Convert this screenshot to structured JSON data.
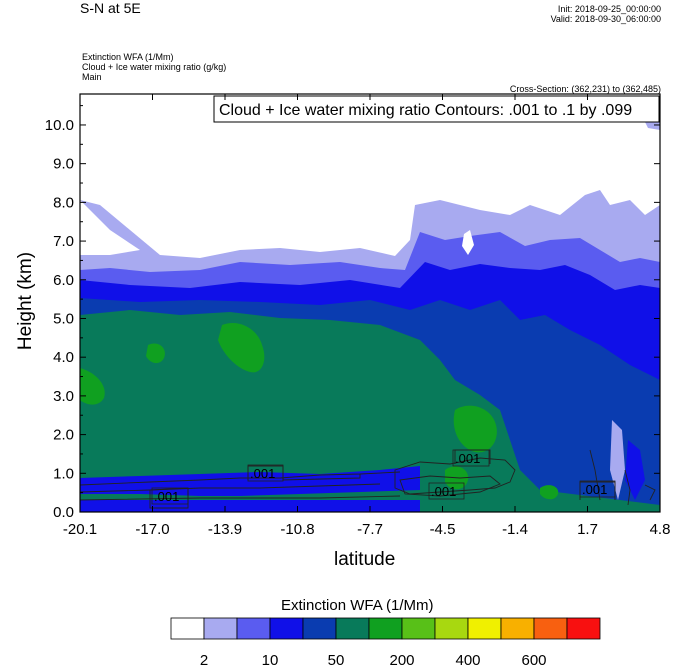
{
  "header": {
    "title": "S-N at 5E",
    "init": "Init: 2018-09-25_00:00:00",
    "valid": "Valid: 2018-09-30_06:00:00",
    "field1": "Extinction WFA   (1/Mm)",
    "field2": "Cloud + Ice water mixing ratio   (g/kg)",
    "field3": "Main",
    "cross_section": "Cross-Section: (362,231) to (362,485)"
  },
  "chart_data": {
    "type": "heatmap",
    "title": "Cloud + Ice water mixing ratio Contours: .001 to .1 by .099",
    "xlabel": "latitude",
    "ylabel": "Height (km)",
    "xlim": [
      -20.1,
      4.8
    ],
    "ylim": [
      0.0,
      10.8
    ],
    "x_ticks": [
      "-20.1",
      "-17.0",
      "-13.9",
      "-10.8",
      "-7.7",
      "-4.5",
      "-1.4",
      "1.7",
      "4.8"
    ],
    "y_ticks": [
      "0.0",
      "1.0",
      "2.0",
      "3.0",
      "4.0",
      "5.0",
      "6.0",
      "7.0",
      "8.0",
      "9.0",
      "10.0"
    ],
    "contour_labels": [
      {
        "text": ".001",
        "lat": -16.4,
        "height": 0.4
      },
      {
        "text": ".001",
        "lat": -12.8,
        "height": 1.0
      },
      {
        "text": ".001",
        "lat": -4.5,
        "height": 0.55
      },
      {
        "text": ".001",
        "lat": -3.8,
        "height": 1.4
      },
      {
        "text": ".001",
        "lat": 2.2,
        "height": 0.6
      }
    ],
    "colorbar": {
      "title": "Extinction WFA  (1/Mm)",
      "tick_labels": [
        "2",
        "10",
        "50",
        "200",
        "400",
        "600"
      ],
      "colors": [
        "#ffffff",
        "#a8aaf0",
        "#5a5cf0",
        "#1010e8",
        "#0a3cb0",
        "#087a5a",
        "#10a020",
        "#58c018",
        "#a8d810",
        "#f0f000",
        "#f8b000",
        "#f86010",
        "#f81010"
      ]
    },
    "colors": {
      "white": "#ffffff",
      "lavender": "#a8aaf0",
      "periwinkle": "#5a5cf0",
      "blue": "#1010e8",
      "darkblue": "#0a3cb0",
      "teal": "#087a5a",
      "green": "#10a020"
    }
  }
}
